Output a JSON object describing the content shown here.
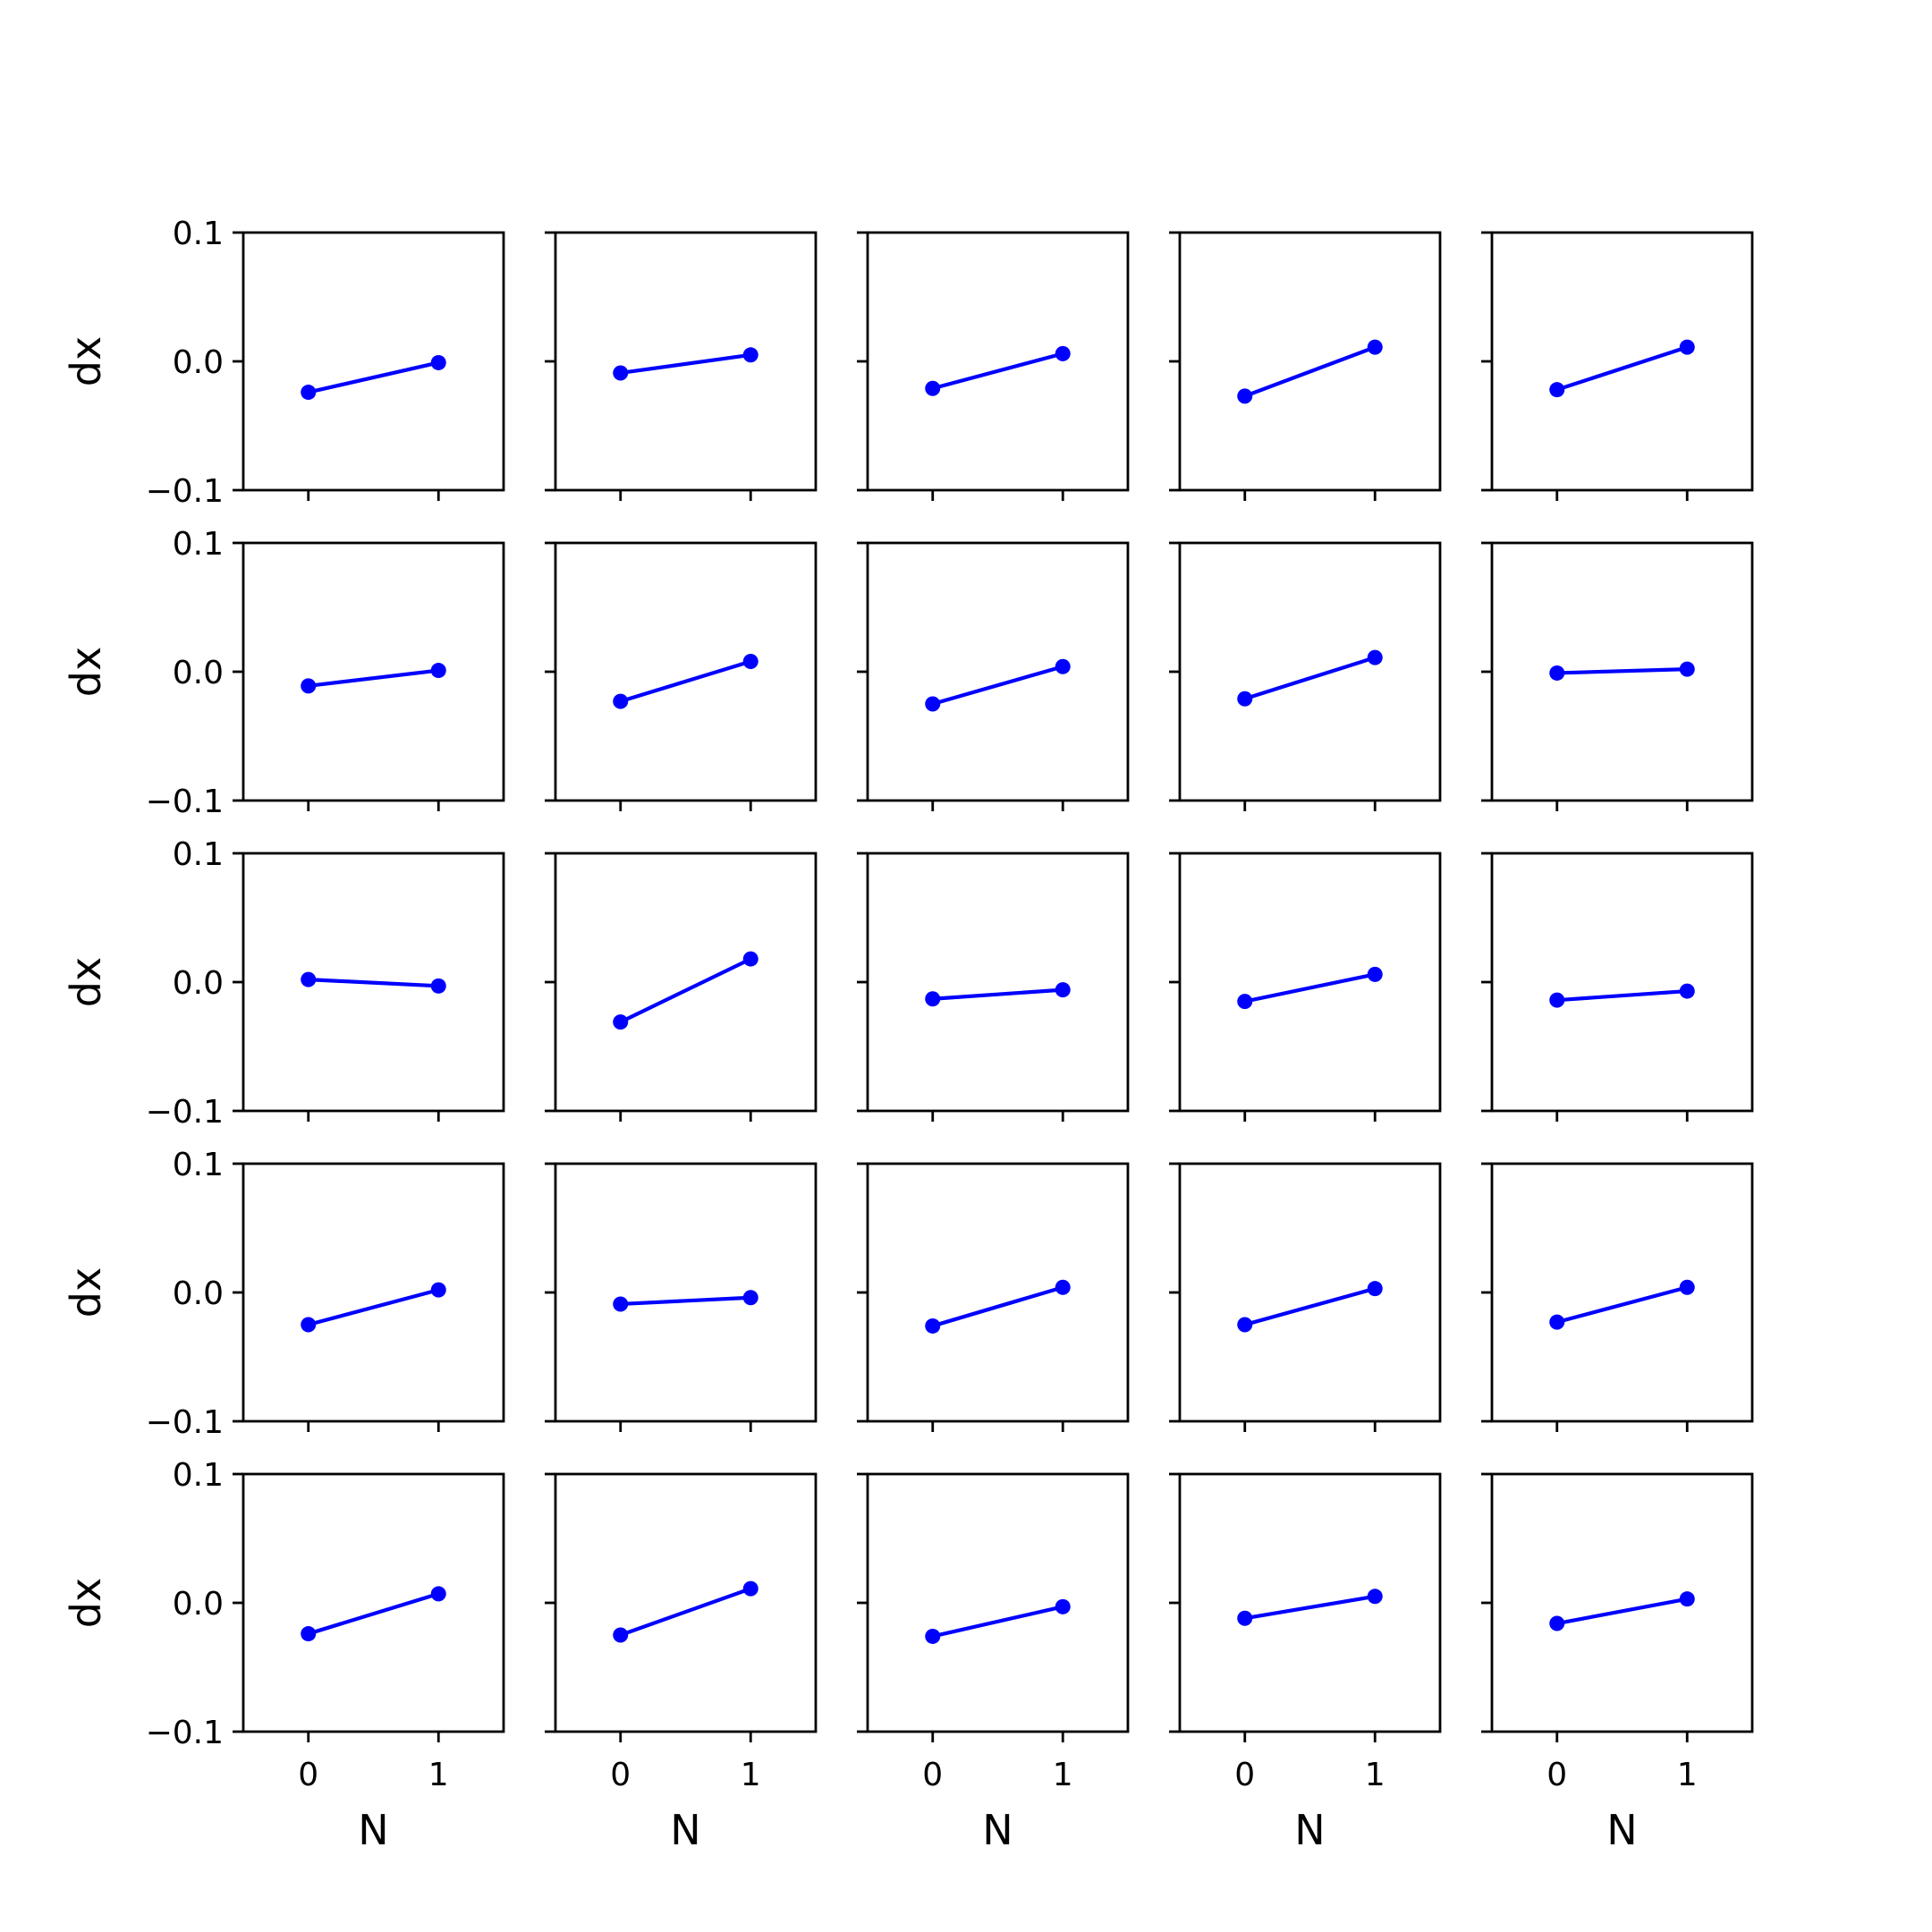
{
  "chart_data": {
    "type": "line",
    "layout": {
      "rows": 5,
      "cols": 5
    },
    "xlabel": "N",
    "ylabel": "dx",
    "xlim": [
      -0.5,
      1.5
    ],
    "ylim": [
      -0.1,
      0.1
    ],
    "xticks": [
      0,
      1
    ],
    "yticks": [
      -0.1,
      0.0,
      0.1
    ],
    "xtick_labels": [
      "0",
      "1"
    ],
    "ytick_labels": [
      "−0.1",
      "0.0",
      "0.1"
    ],
    "x": [
      0,
      1
    ],
    "color": "#0000ff",
    "panels": [
      [
        -0.024,
        -0.001
      ],
      [
        -0.009,
        0.005
      ],
      [
        -0.021,
        0.006
      ],
      [
        -0.027,
        0.011
      ],
      [
        -0.022,
        0.011
      ],
      [
        -0.011,
        0.001
      ],
      [
        -0.023,
        0.008
      ],
      [
        -0.025,
        0.004
      ],
      [
        -0.021,
        0.011
      ],
      [
        -0.001,
        0.002
      ],
      [
        0.002,
        -0.003
      ],
      [
        -0.031,
        0.018
      ],
      [
        -0.013,
        -0.006
      ],
      [
        -0.015,
        0.006
      ],
      [
        -0.014,
        -0.007
      ],
      [
        -0.025,
        0.002
      ],
      [
        -0.009,
        -0.004
      ],
      [
        -0.026,
        0.004
      ],
      [
        -0.025,
        0.003
      ],
      [
        -0.023,
        0.004
      ],
      [
        -0.024,
        0.007
      ],
      [
        -0.025,
        0.011
      ],
      [
        -0.026,
        -0.003
      ],
      [
        -0.012,
        0.005
      ],
      [
        -0.016,
        0.003
      ]
    ]
  }
}
